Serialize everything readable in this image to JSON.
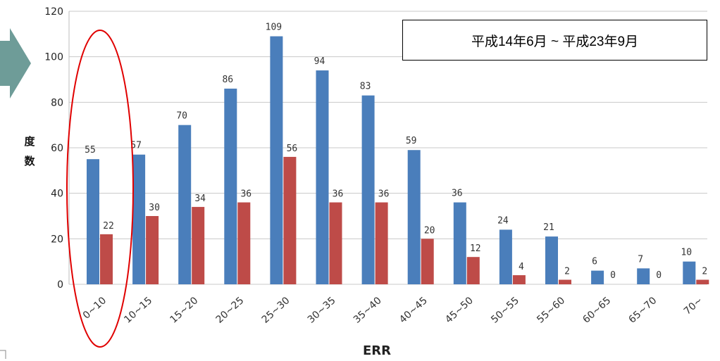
{
  "chart_data": {
    "type": "bar",
    "title": "",
    "annotation": "平成14年6月 ~ 平成23年9月",
    "xlabel": "ERR",
    "ylabel": "度数",
    "ylim": [
      0,
      120
    ],
    "yticks": [
      0,
      20,
      40,
      60,
      80,
      100,
      120
    ],
    "grid": true,
    "categories": [
      "0~10",
      "10~15",
      "15~20",
      "20~25",
      "25~30",
      "30~35",
      "35~40",
      "40~45",
      "45~50",
      "50~55",
      "55~60",
      "60~65",
      "65~70",
      "70~"
    ],
    "series": [
      {
        "values": [
          55,
          57,
          70,
          86,
          109,
          94,
          83,
          59,
          36,
          24,
          21,
          6,
          7,
          10
        ],
        "color": "#4a7ebb"
      },
      {
        "values": [
          22,
          30,
          34,
          36,
          56,
          36,
          36,
          20,
          12,
          4,
          2,
          0,
          0,
          2
        ],
        "color": "#be4b48"
      }
    ],
    "highlight": {
      "category": "0~10",
      "shape": "ellipse",
      "color": "#e00000"
    },
    "arrow_color": "#6e9c98"
  }
}
